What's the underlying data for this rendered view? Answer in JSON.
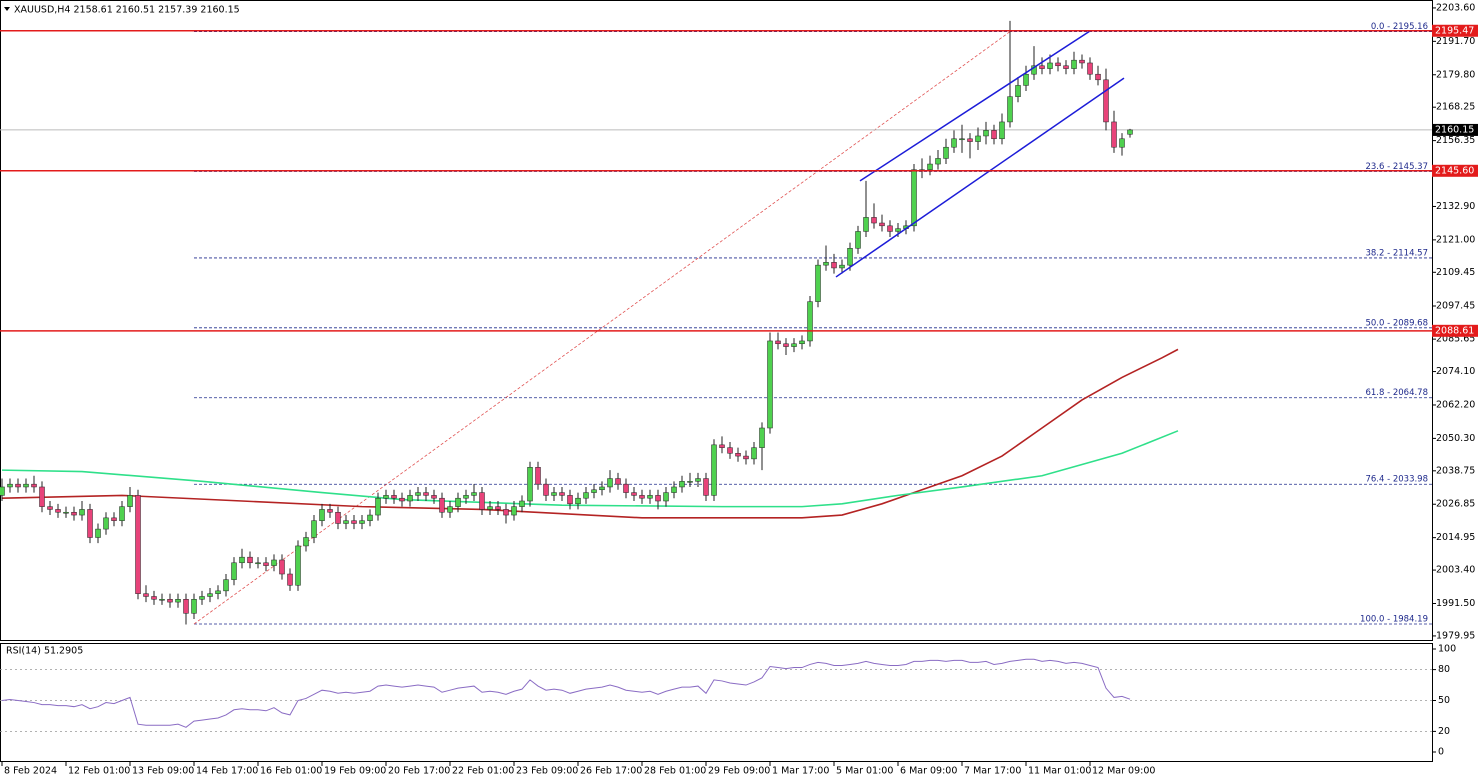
{
  "chart_data": {
    "type": "candlestick",
    "title": "XAUUSD,H4 2158.61 2160.51 2157.39 2160.15",
    "up_color": "#4fd14f",
    "down_color": "#e8437a",
    "xlim": [
      -0.25,
      178.75
    ],
    "ylim": [
      1978.5,
      2205.0
    ],
    "yticks": [
      {
        "value": 2203.6,
        "label": "2203.60"
      },
      {
        "value": 2191.7,
        "label": "2191.70"
      },
      {
        "value": 2179.8,
        "label": "2179.80"
      },
      2168.25,
      2156.35,
      {
        "value": 2132.9,
        "label": "2132.90"
      },
      {
        "value": 2121.0,
        "label": "2121.00"
      },
      2109.45,
      2097.45,
      2085.65,
      {
        "value": 2074.1,
        "label": "2074.10"
      },
      {
        "value": 2062.2,
        "label": "2062.20"
      },
      {
        "value": 2050.3,
        "label": "2050.30"
      },
      2038.75,
      2026.85,
      2014.95,
      {
        "value": 2003.4,
        "label": "2003.40"
      },
      {
        "value": 1991.5,
        "label": "1991.50"
      },
      1979.95
    ],
    "xticks": [
      {
        "value": 0,
        "label": "8 Feb 2024"
      },
      {
        "value": 8,
        "label": "12 Feb 01:00"
      },
      {
        "value": 16,
        "label": "13 Feb 09:00"
      },
      {
        "value": 24,
        "label": "14 Feb 17:00"
      },
      {
        "value": 32,
        "label": "16 Feb 01:00"
      },
      {
        "value": 40,
        "label": "19 Feb 09:00"
      },
      {
        "value": 48,
        "label": "20 Feb 17:00"
      },
      {
        "value": 56,
        "label": "22 Feb 01:00"
      },
      {
        "value": 64,
        "label": "23 Feb 09:00"
      },
      {
        "value": 72,
        "label": "26 Feb 17:00"
      },
      {
        "value": 80,
        "label": "28 Feb 01:00"
      },
      {
        "value": 88,
        "label": "29 Feb 09:00"
      },
      {
        "value": 96,
        "label": "1 Mar 17:00"
      },
      {
        "value": 104,
        "label": "5 Mar 01:00"
      },
      {
        "value": 112,
        "label": "6 Mar 09:00"
      },
      {
        "value": 120,
        "label": "7 Mar 17:00"
      },
      {
        "value": 128,
        "label": "11 Mar 01:00"
      },
      {
        "value": 136,
        "label": "12 Mar 09:00"
      }
    ],
    "ohlc": [
      [
        2030,
        2036,
        2028,
        2033
      ],
      [
        2033,
        2036,
        2031,
        2034
      ],
      [
        2034,
        2036,
        2031,
        2033
      ],
      [
        2033,
        2036,
        2031,
        2034
      ],
      [
        2034,
        2037,
        2031,
        2033
      ],
      [
        2033,
        2035,
        2024,
        2026
      ],
      [
        2026,
        2028,
        2023,
        2025
      ],
      [
        2025,
        2027,
        2022,
        2024
      ],
      [
        2024,
        2026,
        2022,
        2024
      ],
      [
        2024,
        2026,
        2021,
        2023
      ],
      [
        2023,
        2028,
        2021,
        2025
      ],
      [
        2025,
        2027,
        2013,
        2015
      ],
      [
        2015,
        2020,
        2013,
        2018
      ],
      [
        2018,
        2024,
        2016,
        2022
      ],
      [
        2022,
        2024,
        2019,
        2021
      ],
      [
        2021,
        2028,
        2019,
        2026
      ],
      [
        2026,
        2033,
        2024,
        2030
      ],
      [
        2030,
        2032,
        1993,
        1995
      ],
      [
        1995,
        1998,
        1992,
        1994
      ],
      [
        1994,
        1996,
        1991,
        1993
      ],
      [
        1993,
        1995,
        1991,
        1993
      ],
      [
        1993,
        1995,
        1990,
        1992
      ],
      [
        1992,
        1995,
        1990,
        1993
      ],
      [
        1993,
        1995,
        1984,
        1988
      ],
      [
        1988,
        1995,
        1986,
        1993
      ],
      [
        1993,
        1996,
        1991,
        1994
      ],
      [
        1994,
        1997,
        1992,
        1995
      ],
      [
        1995,
        1998,
        1993,
        1996
      ],
      [
        1996,
        2002,
        1994,
        2000
      ],
      [
        2000,
        2008,
        1998,
        2006
      ],
      [
        2006,
        2011,
        2004,
        2008
      ],
      [
        2008,
        2010,
        2004,
        2006
      ],
      [
        2006,
        2008,
        2004,
        2006
      ],
      [
        2006,
        2008,
        2003,
        2005
      ],
      [
        2005,
        2009,
        2003,
        2007
      ],
      [
        2007,
        2009,
        2000,
        2002
      ],
      [
        2002,
        2004,
        1996,
        1998
      ],
      [
        1998,
        2014,
        1996,
        2012
      ],
      [
        2012,
        2017,
        2010,
        2015
      ],
      [
        2015,
        2023,
        2013,
        2021
      ],
      [
        2021,
        2027,
        2019,
        2025
      ],
      [
        2025,
        2027,
        2022,
        2024
      ],
      [
        2024,
        2026,
        2018,
        2020
      ],
      [
        2020,
        2023,
        2018,
        2021
      ],
      [
        2021,
        2023,
        2018,
        2020
      ],
      [
        2020,
        2023,
        2018,
        2021
      ],
      [
        2021,
        2025,
        2019,
        2023
      ],
      [
        2023,
        2031,
        2021,
        2029
      ],
      [
        2029,
        2032,
        2027,
        2030
      ],
      [
        2030,
        2032,
        2027,
        2029
      ],
      [
        2029,
        2031,
        2026,
        2028
      ],
      [
        2028,
        2032,
        2026,
        2030
      ],
      [
        2030,
        2033,
        2028,
        2031
      ],
      [
        2031,
        2033,
        2028,
        2030
      ],
      [
        2030,
        2032,
        2027,
        2029
      ],
      [
        2029,
        2031,
        2022,
        2024
      ],
      [
        2024,
        2028,
        2022,
        2026
      ],
      [
        2026,
        2031,
        2024,
        2029
      ],
      [
        2029,
        2032,
        2027,
        2030
      ],
      [
        2030,
        2034,
        2028,
        2031
      ],
      [
        2031,
        2033,
        2023,
        2025
      ],
      [
        2025,
        2028,
        2023,
        2026
      ],
      [
        2026,
        2028,
        2023,
        2025
      ],
      [
        2025,
        2027,
        2020,
        2023
      ],
      [
        2023,
        2028,
        2021,
        2026
      ],
      [
        2026,
        2030,
        2024,
        2028
      ],
      [
        2028,
        2042,
        2026,
        2040
      ],
      [
        2040,
        2042,
        2032,
        2034
      ],
      [
        2034,
        2036,
        2028,
        2030
      ],
      [
        2030,
        2033,
        2028,
        2031
      ],
      [
        2031,
        2033,
        2028,
        2030
      ],
      [
        2030,
        2032,
        2025,
        2027
      ],
      [
        2027,
        2031,
        2025,
        2029
      ],
      [
        2029,
        2033,
        2027,
        2031
      ],
      [
        2031,
        2034,
        2029,
        2032
      ],
      [
        2032,
        2035,
        2030,
        2033
      ],
      [
        2033,
        2039,
        2031,
        2036
      ],
      [
        2036,
        2038,
        2032,
        2034
      ],
      [
        2034,
        2036,
        2029,
        2031
      ],
      [
        2031,
        2033,
        2028,
        2030
      ],
      [
        2030,
        2032,
        2027,
        2029
      ],
      [
        2029,
        2032,
        2027,
        2030
      ],
      [
        2030,
        2032,
        2025,
        2028
      ],
      [
        2028,
        2033,
        2026,
        2031
      ],
      [
        2031,
        2035,
        2029,
        2033
      ],
      [
        2033,
        2037,
        2031,
        2035
      ],
      [
        2035,
        2038,
        2033,
        2035
      ],
      [
        2035,
        2038,
        2033,
        2036
      ],
      [
        2036,
        2038,
        2028,
        2030
      ],
      [
        2030,
        2050,
        2028,
        2048
      ],
      [
        2048,
        2051,
        2045,
        2047
      ],
      [
        2047,
        2049,
        2043,
        2045
      ],
      [
        2045,
        2047,
        2042,
        2044
      ],
      [
        2044,
        2046,
        2041,
        2043
      ],
      [
        2043,
        2049,
        2041,
        2047
      ],
      [
        2047,
        2056,
        2039,
        2054
      ],
      [
        2054,
        2088,
        2052,
        2085
      ],
      [
        2085,
        2088,
        2082,
        2084
      ],
      [
        2084,
        2086,
        2080,
        2083
      ],
      [
        2083,
        2086,
        2081,
        2084
      ],
      [
        2084,
        2087,
        2082,
        2085
      ],
      [
        2085,
        2101,
        2083,
        2099
      ],
      [
        2099,
        2114,
        2097,
        2112
      ],
      [
        2112,
        2119,
        2110,
        2113
      ],
      [
        2113,
        2116,
        2109,
        2111
      ],
      [
        2111,
        2114,
        2109,
        2112
      ],
      [
        2112,
        2120,
        2110,
        2118
      ],
      [
        2118,
        2126,
        2116,
        2124
      ],
      [
        2124,
        2142,
        2122,
        2129
      ],
      [
        2129,
        2134,
        2125,
        2127
      ],
      [
        2127,
        2130,
        2124,
        2126
      ],
      [
        2126,
        2128,
        2122,
        2124
      ],
      [
        2124,
        2127,
        2122,
        2125
      ],
      [
        2125,
        2128,
        2123,
        2126
      ],
      [
        2126,
        2148,
        2124,
        2146
      ],
      [
        2146,
        2150,
        2143,
        2146
      ],
      [
        2146,
        2151,
        2144,
        2148
      ],
      [
        2148,
        2153,
        2146,
        2150
      ],
      [
        2150,
        2157,
        2148,
        2154
      ],
      [
        2154,
        2160,
        2152,
        2157
      ],
      [
        2157,
        2162,
        2152,
        2157
      ],
      [
        2157,
        2159,
        2150,
        2156
      ],
      [
        2156,
        2161,
        2153,
        2158
      ],
      [
        2158,
        2163,
        2155,
        2160
      ],
      [
        2160,
        2162,
        2155,
        2157
      ],
      [
        2157,
        2166,
        2155,
        2163
      ],
      [
        2163,
        2199,
        2161,
        2172
      ],
      [
        2172,
        2179,
        2170,
        2176
      ],
      [
        2176,
        2183,
        2174,
        2180
      ],
      [
        2180,
        2190,
        2178,
        2183
      ],
      [
        2183,
        2186,
        2180,
        2182
      ],
      [
        2182,
        2187,
        2180,
        2184
      ],
      [
        2184,
        2186,
        2181,
        2183
      ],
      [
        2183,
        2185,
        2180,
        2182
      ],
      [
        2182,
        2188,
        2180,
        2185
      ],
      [
        2185,
        2187,
        2182,
        2184
      ],
      [
        2184,
        2186,
        2178,
        2180
      ],
      [
        2180,
        2183,
        2176,
        2178
      ],
      [
        2178,
        2182,
        2160,
        2163
      ],
      [
        2163,
        2167,
        2152,
        2154
      ],
      [
        2154,
        2159,
        2151,
        2157
      ],
      [
        2158.61,
        2160.51,
        2157.39,
        2160.15
      ]
    ],
    "ma": [
      {
        "color": "#b42323",
        "x": [
          0,
          15,
          30,
          45,
          60,
          80,
          100,
          105,
          110,
          115,
          120,
          125,
          130,
          135,
          140,
          145,
          147
        ],
        "values": [
          2029,
          2030,
          2028,
          2026,
          2025,
          2022,
          2022,
          2023,
          2027,
          2032,
          2037,
          2044,
          2054,
          2064,
          2072,
          2079,
          2082
        ]
      },
      {
        "color": "#2fe08a",
        "x": [
          0,
          10,
          25,
          40,
          50,
          70,
          90,
          100,
          105,
          112,
          120,
          130,
          135,
          140,
          147
        ],
        "values": [
          2039,
          2038.5,
          2035,
          2031,
          2028.5,
          2026.5,
          2026,
          2026,
          2027,
          2030,
          2033,
          2037,
          2041,
          2045,
          2053
        ]
      }
    ],
    "channel": {
      "color": "#1c1cd8",
      "lines": [
        {
          "x": [
            107.25,
            136
          ],
          "values": [
            2142,
            2195.4
          ]
        },
        {
          "x": [
            104.25,
            140.25
          ],
          "values": [
            2107.8,
            2178.6
          ]
        }
      ]
    },
    "fib": {
      "color": "#1f2a8c",
      "trend_color": "#e05050",
      "x": [
        24,
        126
      ],
      "levels": [
        {
          "label": "0.0 - 2195.16",
          "value": 2195.16
        },
        {
          "label": "23.6 - 2145.37",
          "value": 2145.37
        },
        {
          "label": "38.2 - 2114.57",
          "value": 2114.57
        },
        {
          "label": "50.0 - 2089.68",
          "value": 2089.68
        },
        {
          "label": "61.8 - 2064.78",
          "value": 2064.78
        },
        {
          "label": "76.4 - 2033.98",
          "value": 2033.98
        },
        {
          "label": "100.0 - 1984.19",
          "value": 1984.19
        }
      ]
    },
    "levels": [
      2195.47,
      {
        "value": 2145.6,
        "label": "2145.60"
      },
      2088.61
    ],
    "level_color": "#e31b1b",
    "last_price": 2160.15,
    "rsi": {
      "label": "RSI(14) 51.2905",
      "color": "#8a6cc4",
      "ylim": [
        0,
        100
      ],
      "yticks": [
        100,
        80,
        50,
        20,
        0
      ],
      "values": [
        50,
        51,
        50,
        49,
        48,
        46,
        46,
        45,
        45,
        44,
        46,
        42,
        44,
        48,
        47,
        50,
        53,
        27,
        26,
        26,
        26,
        26,
        27,
        24,
        30,
        31,
        32,
        33,
        36,
        41,
        42,
        41,
        41,
        40,
        43,
        38,
        36,
        50,
        52,
        56,
        60,
        59,
        57,
        58,
        57,
        58,
        59,
        64,
        65,
        64,
        63,
        64,
        65,
        64,
        63,
        58,
        60,
        62,
        63,
        64,
        58,
        59,
        58,
        56,
        59,
        61,
        70,
        64,
        60,
        61,
        60,
        57,
        59,
        61,
        62,
        63,
        65,
        63,
        60,
        59,
        58,
        59,
        56,
        59,
        61,
        63,
        63,
        64,
        57,
        70,
        69,
        67,
        66,
        65,
        68,
        72,
        83,
        82,
        81,
        82,
        82,
        85,
        87,
        86,
        84,
        84,
        85,
        86,
        88,
        86,
        85,
        84,
        84,
        85,
        88,
        88,
        89,
        89,
        88,
        89,
        89,
        87,
        87,
        88,
        85,
        86,
        88,
        89,
        90,
        90,
        88,
        89,
        88,
        86,
        87,
        86,
        84,
        82,
        62,
        53,
        54,
        51.2905
      ]
    }
  }
}
